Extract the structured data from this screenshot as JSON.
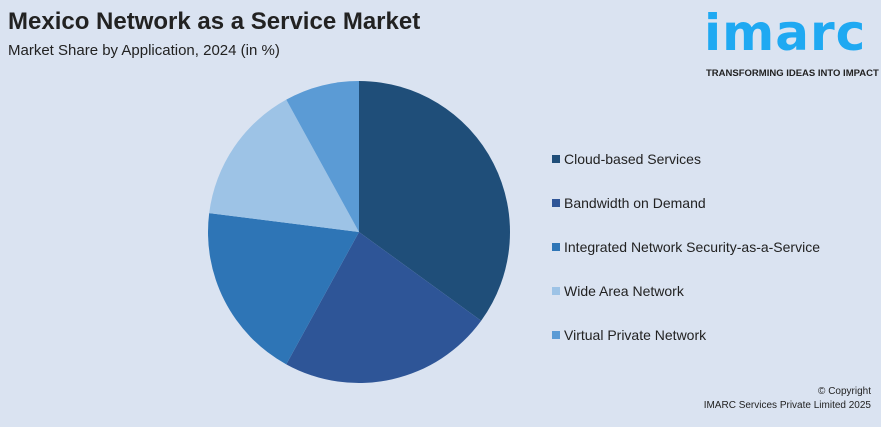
{
  "header": {
    "title": "Mexico Network as a Service Market",
    "subtitle": "Market Share by Application, 2024 (in %)"
  },
  "logo": {
    "word": "imarc",
    "tagline": "TRANSFORMING IDEAS INTO IMPACT",
    "color": "#1fa9f2"
  },
  "chart_data": {
    "type": "pie",
    "title": "Mexico Network as a Service Market",
    "subtitle": "Market Share by Application, 2024 (in %)",
    "legend_position": "right",
    "categories": [
      "Cloud-based Services",
      "Bandwidth on Demand",
      "Integrated Network Security-as-a-Service",
      "Wide Area Network",
      "Virtual Private Network"
    ],
    "values": [
      35,
      23,
      19,
      15,
      8
    ],
    "colors": [
      "#1f4e79",
      "#2e5597",
      "#2e75b6",
      "#9dc3e6",
      "#5b9bd5"
    ]
  },
  "footer": {
    "copyright": "© Copyright",
    "company": "IMARC Services Private Limited 2025"
  }
}
